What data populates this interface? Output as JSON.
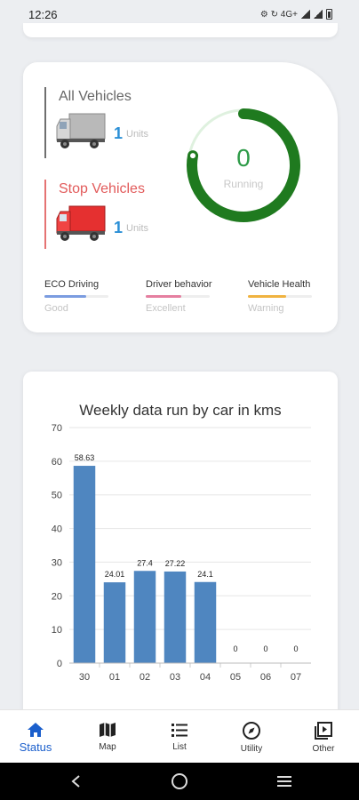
{
  "status_bar": {
    "time": "12:26",
    "indicators": "⚙ ↻ 4G+",
    "icons": [
      "settings-icon",
      "sync-icon",
      "signal-icon",
      "battery-icon"
    ]
  },
  "vehicles": {
    "all": {
      "title": "All Vehicles",
      "count": "1",
      "unit": "Units",
      "icon": "gray-truck-icon"
    },
    "stop": {
      "title": "Stop Vehicles",
      "count": "1",
      "unit": "Units",
      "icon": "red-truck-icon"
    }
  },
  "gauge": {
    "value": "0",
    "label": "Running",
    "fill_fraction": 0.78,
    "color": "#1f7a1f"
  },
  "metrics": [
    {
      "title": "ECO Driving",
      "value": "Good",
      "color": "#7b9ce0",
      "fill": 0.65
    },
    {
      "title": "Driver behavior",
      "value": "Excellent",
      "color": "#e57fa0",
      "fill": 0.55
    },
    {
      "title": "Vehicle Health",
      "value": "Warning",
      "color": "#f0b340",
      "fill": 0.6
    }
  ],
  "chart_data": {
    "type": "bar",
    "title": "Weekly data run by car in kms",
    "categories": [
      "30",
      "01",
      "02",
      "03",
      "04",
      "05",
      "06",
      "07"
    ],
    "values": [
      58.63,
      24.01,
      27.4,
      27.22,
      24.1,
      0,
      0,
      0
    ],
    "data_labels": [
      "58.63",
      "24.01",
      "27.4",
      "27.22",
      "24.1",
      "0",
      "0",
      "0"
    ],
    "yticks": [
      "0",
      "10",
      "20",
      "30",
      "40",
      "50",
      "60",
      "70"
    ],
    "ylim": [
      0,
      70
    ],
    "bar_color": "#4f86c0",
    "grid": true
  },
  "nav": [
    {
      "label": "Status",
      "icon": "home-icon",
      "active": true
    },
    {
      "label": "Map",
      "icon": "map-icon",
      "active": false
    },
    {
      "label": "List",
      "icon": "list-icon",
      "active": false
    },
    {
      "label": "Utility",
      "icon": "compass-icon",
      "active": false
    },
    {
      "label": "Other",
      "icon": "playlist-icon",
      "active": false
    }
  ],
  "system_nav": [
    "back-icon",
    "home-circle-icon",
    "recents-icon"
  ]
}
